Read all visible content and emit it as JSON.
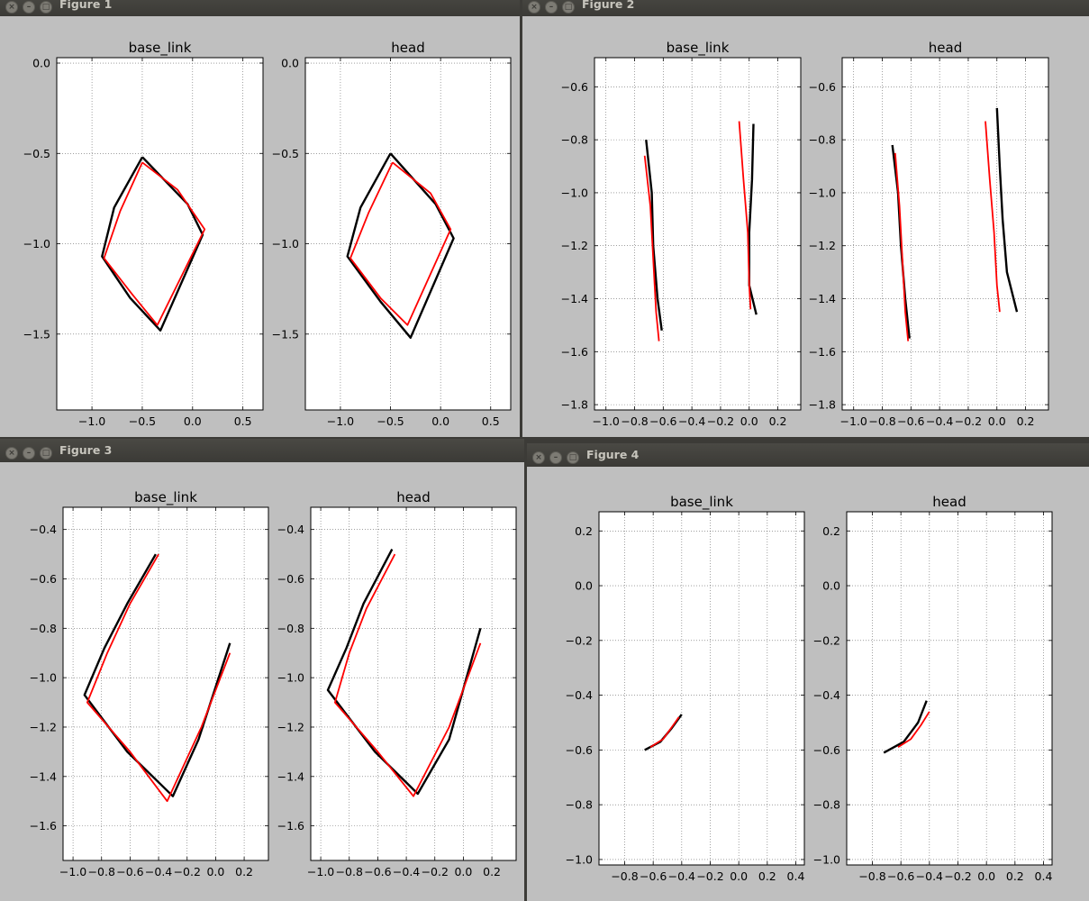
{
  "windows": [
    {
      "title": "Figure 1",
      "id": "fig1"
    },
    {
      "title": "Figure 2",
      "id": "fig2"
    },
    {
      "title": "Figure 3",
      "id": "fig3"
    },
    {
      "title": "Figure 4",
      "id": "fig4"
    }
  ],
  "colors": {
    "estimate": "#ff0000",
    "reference": "#000000",
    "figure_bg": "#bfbfbf",
    "axes_bg": "#ffffff"
  },
  "chart_data": [
    {
      "figure": "Figure 1",
      "subplots": [
        {
          "type": "line",
          "title": "base_link",
          "xlim": [
            -1.35,
            0.7
          ],
          "ylim": [
            -1.92,
            0.03
          ],
          "xticks": [
            -1.0,
            -0.5,
            0.0,
            0.5
          ],
          "xtick_labels": [
            "−1.0",
            "−0.5",
            "0.0",
            "0.5"
          ],
          "yticks": [
            0.0,
            -0.5,
            -1.0,
            -1.5
          ],
          "ytick_labels": [
            "0.0",
            "−0.5",
            "−1.0",
            "−1.5"
          ],
          "grid": true,
          "series": [
            {
              "color": "#000000",
              "x": [
                -0.5,
                -0.78,
                -0.9,
                -0.62,
                -0.32,
                0.1,
                -0.05,
                -0.5
              ],
              "y": [
                -0.52,
                -0.8,
                -1.07,
                -1.3,
                -1.48,
                -0.95,
                -0.78,
                -0.52
              ]
            },
            {
              "color": "#ff0000",
              "x": [
                -0.5,
                -0.72,
                -0.88,
                -0.6,
                -0.35,
                0.12,
                -0.15,
                -0.5
              ],
              "y": [
                -0.55,
                -0.82,
                -1.08,
                -1.28,
                -1.45,
                -0.92,
                -0.7,
                -0.55
              ]
            }
          ]
        },
        {
          "type": "line",
          "title": "head",
          "xlim": [
            -1.35,
            0.7
          ],
          "ylim": [
            -1.92,
            0.03
          ],
          "xticks": [
            -1.0,
            -0.5,
            0.0,
            0.5
          ],
          "xtick_labels": [
            "−1.0",
            "−0.5",
            "0.0",
            "0.5"
          ],
          "yticks": [
            0.0,
            -0.5,
            -1.0,
            -1.5
          ],
          "ytick_labels": [
            "0.0",
            "−0.5",
            "−1.0",
            "−1.5"
          ],
          "grid": true,
          "series": [
            {
              "color": "#000000",
              "x": [
                -0.5,
                -0.8,
                -0.93,
                -0.6,
                -0.3,
                0.13,
                -0.05,
                -0.5
              ],
              "y": [
                -0.5,
                -0.8,
                -1.07,
                -1.32,
                -1.52,
                -0.97,
                -0.78,
                -0.5
              ]
            },
            {
              "color": "#ff0000",
              "x": [
                -0.48,
                -0.72,
                -0.9,
                -0.6,
                -0.33,
                0.1,
                -0.1,
                -0.48
              ],
              "y": [
                -0.55,
                -0.83,
                -1.08,
                -1.3,
                -1.45,
                -0.92,
                -0.72,
                -0.55
              ]
            }
          ]
        }
      ]
    },
    {
      "figure": "Figure 2",
      "subplots": [
        {
          "type": "line",
          "title": "base_link",
          "xlim": [
            -1.08,
            0.36
          ],
          "ylim": [
            -1.82,
            -0.49
          ],
          "xticks": [
            -1.0,
            -0.8,
            -0.6,
            -0.4,
            -0.2,
            0.0,
            0.2
          ],
          "xtick_labels": [
            "−1.0",
            "−0.8",
            "−0.6",
            "−0.4",
            "−0.2",
            "0.0",
            "0.2"
          ],
          "yticks": [
            -0.6,
            -0.8,
            -1.0,
            -1.2,
            -1.4,
            -1.6,
            -1.8
          ],
          "ytick_labels": [
            "−0.6",
            "−0.8",
            "−1.0",
            "−1.2",
            "−1.4",
            "−1.6",
            "−1.8"
          ],
          "grid": true,
          "series": [
            {
              "color": "#000000",
              "x": [
                -0.72,
                -0.68,
                -0.67,
                -0.64,
                -0.61
              ],
              "y": [
                -0.8,
                -1.0,
                -1.2,
                -1.4,
                -1.52
              ]
            },
            {
              "color": "#ff0000",
              "x": [
                -0.73,
                -0.69,
                -0.67,
                -0.65,
                -0.63
              ],
              "y": [
                -0.86,
                -1.05,
                -1.25,
                -1.45,
                -1.56
              ]
            },
            {
              "color": "#000000",
              "x": [
                0.03,
                0.02,
                0.0,
                0.0,
                0.05
              ],
              "y": [
                -0.74,
                -0.95,
                -1.15,
                -1.35,
                -1.46
              ]
            },
            {
              "color": "#ff0000",
              "x": [
                -0.07,
                -0.04,
                -0.01,
                0.0,
                0.01
              ],
              "y": [
                -0.73,
                -0.95,
                -1.15,
                -1.35,
                -1.44
              ]
            }
          ]
        },
        {
          "type": "line",
          "title": "head",
          "xlim": [
            -1.08,
            0.36
          ],
          "ylim": [
            -1.82,
            -0.49
          ],
          "xticks": [
            -1.0,
            -0.8,
            -0.6,
            -0.4,
            -0.2,
            0.0,
            0.2
          ],
          "xtick_labels": [
            "−1.0",
            "−0.8",
            "−0.6",
            "−0.4",
            "−0.2",
            "0.0",
            "0.2"
          ],
          "yticks": [
            -0.6,
            -0.8,
            -1.0,
            -1.2,
            -1.4,
            -1.6,
            -1.8
          ],
          "ytick_labels": [
            "−0.6",
            "−0.8",
            "−1.0",
            "−1.2",
            "−1.4",
            "−1.6",
            "−1.8"
          ],
          "grid": true,
          "series": [
            {
              "color": "#000000",
              "x": [
                -0.73,
                -0.69,
                -0.67,
                -0.64,
                -0.61
              ],
              "y": [
                -0.82,
                -1.0,
                -1.2,
                -1.4,
                -1.55
              ]
            },
            {
              "color": "#ff0000",
              "x": [
                -0.71,
                -0.68,
                -0.66,
                -0.64,
                -0.62
              ],
              "y": [
                -0.85,
                -1.05,
                -1.25,
                -1.45,
                -1.56
              ]
            },
            {
              "color": "#000000",
              "x": [
                0.0,
                0.02,
                0.04,
                0.07,
                0.14
              ],
              "y": [
                -0.68,
                -0.9,
                -1.1,
                -1.3,
                -1.45
              ]
            },
            {
              "color": "#ff0000",
              "x": [
                -0.08,
                -0.05,
                -0.02,
                0.0,
                0.02
              ],
              "y": [
                -0.73,
                -0.95,
                -1.15,
                -1.35,
                -1.45
              ]
            }
          ]
        }
      ]
    },
    {
      "figure": "Figure 3",
      "subplots": [
        {
          "type": "line",
          "title": "base_link",
          "xlim": [
            -1.07,
            0.37
          ],
          "ylim": [
            -1.74,
            -0.31
          ],
          "xticks": [
            -1.0,
            -0.8,
            -0.6,
            -0.4,
            -0.2,
            0.0,
            0.2
          ],
          "xtick_labels": [
            "−1.0",
            "−0.8",
            "−0.6",
            "−0.4",
            "−0.2",
            "0.0",
            "0.2"
          ],
          "yticks": [
            -0.4,
            -0.6,
            -0.8,
            -1.0,
            -1.2,
            -1.4,
            -1.6
          ],
          "ytick_labels": [
            "−0.4",
            "−0.6",
            "−0.8",
            "−1.0",
            "−1.2",
            "−1.4",
            "−1.6"
          ],
          "grid": true,
          "series": [
            {
              "color": "#000000",
              "x": [
                -0.42,
                -0.62,
                -0.78,
                -0.92,
                -0.62,
                -0.3,
                -0.12,
                0.1
              ],
              "y": [
                -0.5,
                -0.7,
                -0.88,
                -1.07,
                -1.3,
                -1.48,
                -1.25,
                -0.86
              ]
            },
            {
              "color": "#ff0000",
              "x": [
                -0.4,
                -0.6,
                -0.76,
                -0.9,
                -0.6,
                -0.34,
                -0.1,
                0.1
              ],
              "y": [
                -0.5,
                -0.7,
                -0.9,
                -1.1,
                -1.3,
                -1.5,
                -1.2,
                -0.9
              ]
            }
          ]
        },
        {
          "type": "line",
          "title": "head",
          "xlim": [
            -1.07,
            0.37
          ],
          "ylim": [
            -1.74,
            -0.31
          ],
          "xticks": [
            -1.0,
            -0.8,
            -0.6,
            -0.4,
            -0.2,
            0.0,
            0.2
          ],
          "xtick_labels": [
            "−1.0",
            "−0.8",
            "−0.6",
            "−0.4",
            "−0.2",
            "0.0",
            "0.2"
          ],
          "yticks": [
            -0.4,
            -0.6,
            -0.8,
            -1.0,
            -1.2,
            -1.4,
            -1.6
          ],
          "ytick_labels": [
            "−0.4",
            "−0.6",
            "−0.8",
            "−1.0",
            "−1.2",
            "−1.4",
            "−1.6"
          ],
          "grid": true,
          "series": [
            {
              "color": "#000000",
              "x": [
                -0.5,
                -0.7,
                -0.82,
                -0.95,
                -0.62,
                -0.32,
                -0.1,
                0.12
              ],
              "y": [
                -0.48,
                -0.7,
                -0.88,
                -1.05,
                -1.3,
                -1.47,
                -1.25,
                -0.8
              ]
            },
            {
              "color": "#ff0000",
              "x": [
                -0.48,
                -0.68,
                -0.8,
                -0.9,
                -0.6,
                -0.35,
                -0.1,
                0.12
              ],
              "y": [
                -0.5,
                -0.72,
                -0.9,
                -1.1,
                -1.3,
                -1.48,
                -1.2,
                -0.86
              ]
            }
          ]
        }
      ]
    },
    {
      "figure": "Figure 4",
      "subplots": [
        {
          "type": "line",
          "title": "base_link",
          "xlim": [
            -0.98,
            0.46
          ],
          "ylim": [
            -1.02,
            0.27
          ],
          "xticks": [
            -0.8,
            -0.6,
            -0.4,
            -0.2,
            0.0,
            0.2,
            0.4
          ],
          "xtick_labels": [
            "−0.8",
            "−0.6",
            "−0.4",
            "−0.2",
            "0.0",
            "0.2",
            "0.4"
          ],
          "yticks": [
            0.2,
            0.0,
            -0.2,
            -0.4,
            -0.6,
            -0.8,
            -1.0
          ],
          "ytick_labels": [
            "0.2",
            "0.0",
            "−0.2",
            "−0.4",
            "−0.6",
            "−0.8",
            "−1.0"
          ],
          "grid": true,
          "series": [
            {
              "color": "#000000",
              "x": [
                -0.66,
                -0.55,
                -0.47,
                -0.4
              ],
              "y": [
                -0.6,
                -0.57,
                -0.52,
                -0.47
              ]
            },
            {
              "color": "#ff0000",
              "x": [
                -0.62,
                -0.53,
                -0.46,
                -0.42
              ],
              "y": [
                -0.59,
                -0.56,
                -0.51,
                -0.48
              ]
            }
          ]
        },
        {
          "type": "line",
          "title": "head",
          "xlim": [
            -0.98,
            0.46
          ],
          "ylim": [
            -1.02,
            0.27
          ],
          "xticks": [
            -0.8,
            -0.6,
            -0.4,
            -0.2,
            0.0,
            0.2,
            0.4
          ],
          "xtick_labels": [
            "−0.8",
            "−0.6",
            "−0.4",
            "−0.2",
            "0.0",
            "0.2",
            "0.4"
          ],
          "yticks": [
            0.2,
            0.0,
            -0.2,
            -0.4,
            -0.6,
            -0.8,
            -1.0
          ],
          "ytick_labels": [
            "0.2",
            "0.0",
            "−0.2",
            "−0.4",
            "−0.6",
            "−0.8",
            "−1.0"
          ],
          "grid": true,
          "series": [
            {
              "color": "#000000",
              "x": [
                -0.72,
                -0.58,
                -0.48,
                -0.42
              ],
              "y": [
                -0.61,
                -0.57,
                -0.5,
                -0.42
              ]
            },
            {
              "color": "#ff0000",
              "x": [
                -0.62,
                -0.53,
                -0.46,
                -0.4
              ],
              "y": [
                -0.59,
                -0.56,
                -0.51,
                -0.46
              ]
            }
          ]
        }
      ]
    }
  ]
}
